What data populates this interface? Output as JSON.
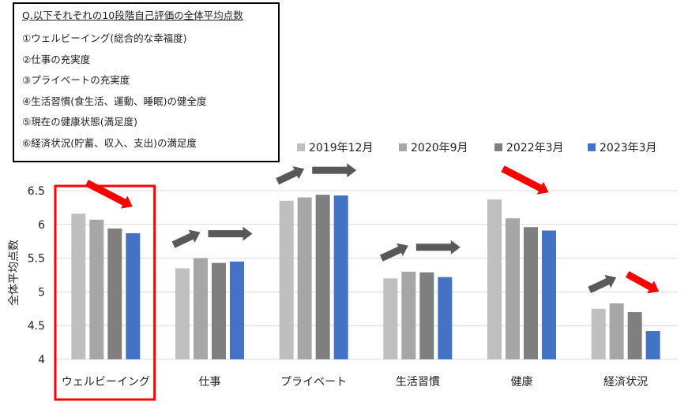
{
  "question_box": {
    "title": "Q.以下それぞれの10段階自己評価の全体平均点数",
    "items": [
      "①ウェルビーイング(総合的な幸福度)",
      "②仕事の充実度",
      "③プライベートの充実度",
      "④生活習慣(食生活、運動、睡眠)の健全度",
      "⑤現在の健康状態(満足度)",
      "⑥経済状況(貯蓄、収入、支出)の満足度"
    ]
  },
  "chart_data": {
    "type": "bar",
    "title": "",
    "xlabel": "",
    "ylabel": "全体平均点数",
    "ylim": [
      4,
      6.5
    ],
    "yticks": [
      "4",
      "4.5",
      "5",
      "5.5",
      "6",
      "6.5"
    ],
    "categories": [
      "ウェルビーイング",
      "仕事",
      "プライベート",
      "生活習慣",
      "健康",
      "経済状況"
    ],
    "series": [
      {
        "name": "2019年12月",
        "color": "#bfbfbf",
        "values": [
          6.16,
          5.35,
          6.35,
          5.2,
          6.37,
          4.75
        ]
      },
      {
        "name": "2020年9月",
        "color": "#a6a6a6",
        "values": [
          6.07,
          5.5,
          6.4,
          5.3,
          6.09,
          4.83
        ]
      },
      {
        "name": "2022年3月",
        "color": "#7f7f7f",
        "values": [
          5.94,
          5.43,
          6.44,
          5.29,
          5.96,
          4.7
        ]
      },
      {
        "name": "2023年3月",
        "color": "#4472c4",
        "values": [
          5.87,
          5.45,
          6.43,
          5.22,
          5.91,
          4.42
        ]
      }
    ],
    "legend_position": "top-right",
    "grid": true,
    "highlighted_category": "ウェルビーイング",
    "trend_arrows": [
      {
        "category": "ウェルビーイング",
        "trend": "down",
        "color": "#ff0000"
      },
      {
        "category": "仕事",
        "trend": "up",
        "color": "#595959"
      },
      {
        "category": "仕事",
        "trend": "flat",
        "color": "#595959"
      },
      {
        "category": "プライベート",
        "trend": "up",
        "color": "#595959"
      },
      {
        "category": "プライベート",
        "trend": "flat",
        "color": "#595959"
      },
      {
        "category": "生活習慣",
        "trend": "up",
        "color": "#595959"
      },
      {
        "category": "生活習慣",
        "trend": "flat",
        "color": "#595959"
      },
      {
        "category": "健康",
        "trend": "down",
        "color": "#ff0000"
      },
      {
        "category": "経済状況",
        "trend": "up",
        "color": "#595959"
      },
      {
        "category": "経済状況",
        "trend": "down",
        "color": "#ff0000"
      }
    ]
  }
}
